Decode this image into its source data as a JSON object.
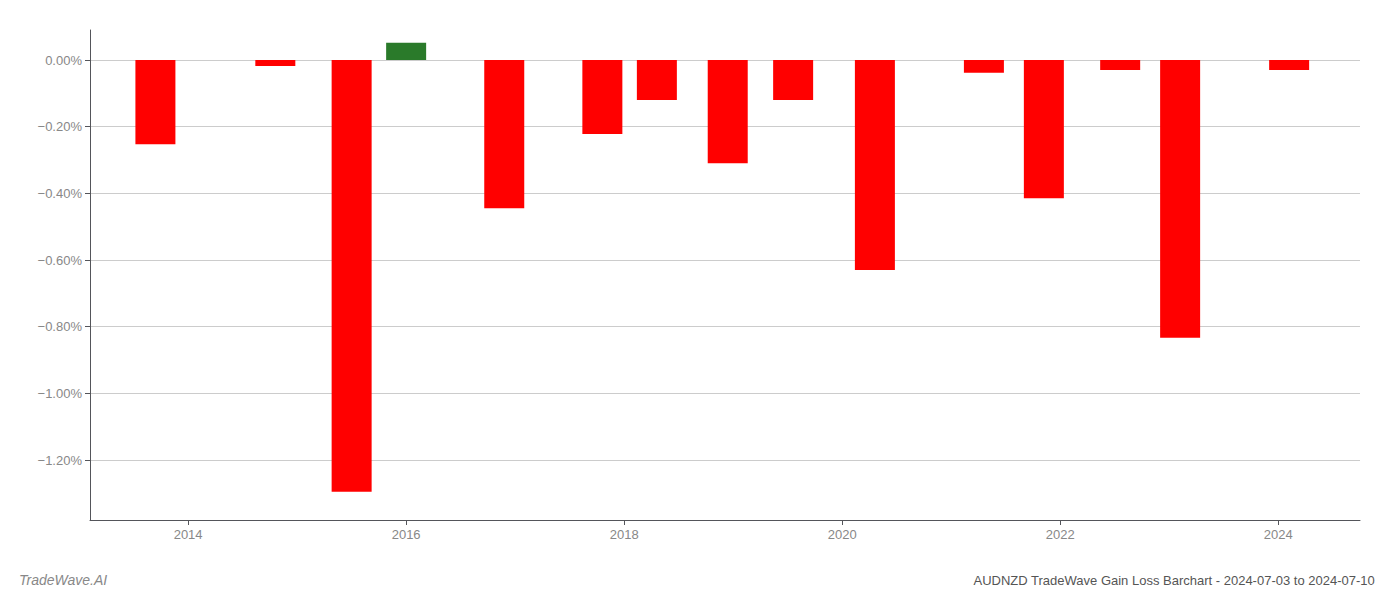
{
  "chart_data": {
    "type": "bar",
    "title": "AUDNZD TradeWave Gain Loss Barchart - 2024-07-03 to 2024-07-10",
    "annotations": [
      "TradeWave.AI"
    ],
    "x": [
      2013.7,
      2014.8,
      2015.5,
      2016.0,
      2016.9,
      2017.8,
      2018.3,
      2018.95,
      2019.55,
      2020.3,
      2021.3,
      2021.85,
      2022.55,
      2023.1,
      2024.1
    ],
    "values": [
      -0.253,
      -0.018,
      -1.295,
      0.052,
      -0.445,
      -0.222,
      -0.12,
      -0.31,
      -0.12,
      -0.63,
      -0.038,
      -0.415,
      -0.03,
      -0.833,
      -0.03
    ],
    "colors": [
      "#ff0000",
      "#ff0000",
      "#ff0000",
      "#2a7a2a",
      "#ff0000",
      "#ff0000",
      "#ff0000",
      "#ff0000",
      "#ff0000",
      "#ff0000",
      "#ff0000",
      "#ff0000",
      "#ff0000",
      "#ff0000",
      "#ff0000"
    ],
    "xlim": [
      2013.1,
      2024.75
    ],
    "xticks": [
      2014,
      2016,
      2018,
      2020,
      2022,
      2024
    ],
    "ylim": [
      -1.38,
      0.09
    ],
    "yticks": [
      {
        "value": 0.0,
        "label": "0.00%"
      },
      {
        "value": -0.2,
        "label": "−0.20%"
      },
      {
        "value": -0.4,
        "label": "−0.40%"
      },
      {
        "value": -0.6,
        "label": "−0.60%"
      },
      {
        "value": -0.8,
        "label": "−0.80%"
      },
      {
        "value": -1.0,
        "label": "−1.00%"
      },
      {
        "value": -1.2,
        "label": "−1.20%"
      }
    ],
    "grid": true
  }
}
